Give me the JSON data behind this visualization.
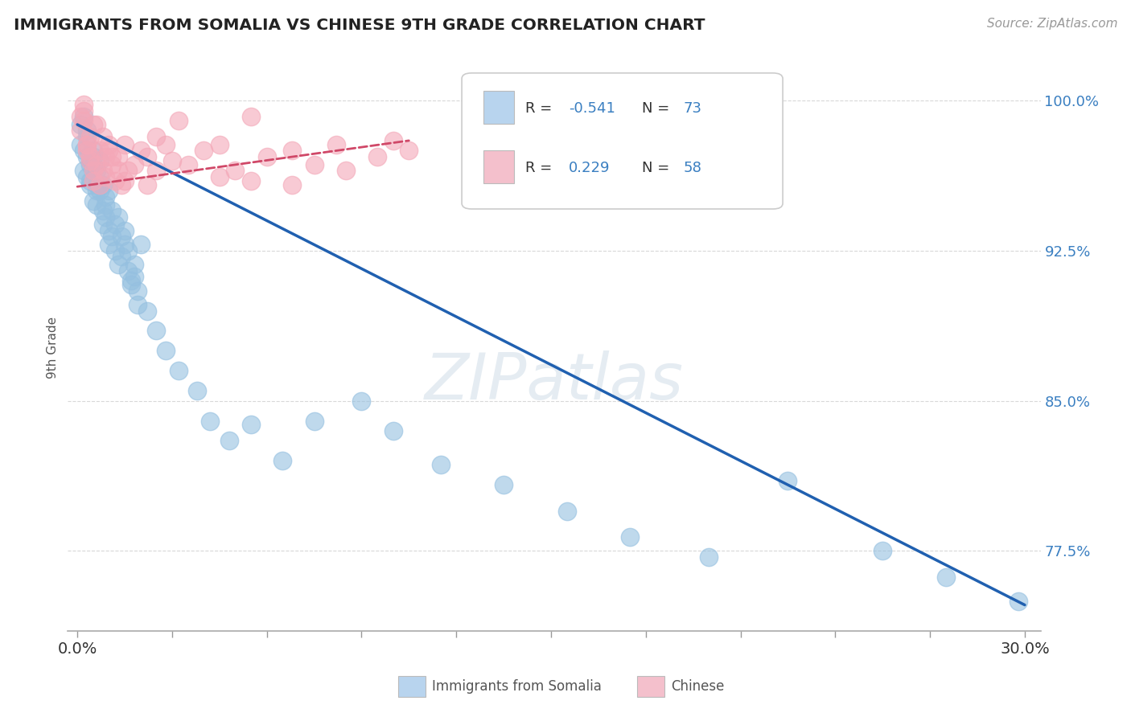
{
  "title": "IMMIGRANTS FROM SOMALIA VS CHINESE 9TH GRADE CORRELATION CHART",
  "source": "Source: ZipAtlas.com",
  "ylabel": "9th Grade",
  "ymin": 0.735,
  "ymax": 1.018,
  "xmin": -0.003,
  "xmax": 0.305,
  "r_somalia": -0.541,
  "n_somalia": 73,
  "r_chinese": 0.229,
  "n_chinese": 58,
  "blue_color": "#95c0e0",
  "pink_color": "#f4a8b8",
  "trend_blue": "#2060b0",
  "trend_pink": "#d04868",
  "legend_box_blue": "#b8d4ee",
  "legend_box_pink": "#f4c0cc",
  "watermark_color": "#c8d8e8",
  "grid_color": "#d8d8d8",
  "background_color": "#ffffff",
  "right_label_color": "#3a7fc1",
  "axis_label_color": "#555555",
  "somalia_trend_x0": 0.0,
  "somalia_trend_y0": 0.988,
  "somalia_trend_x1": 0.3,
  "somalia_trend_y1": 0.748,
  "chinese_trend_x0": 0.0,
  "chinese_trend_y0": 0.957,
  "chinese_trend_x1": 0.105,
  "chinese_trend_y1": 0.98,
  "somalia_x": [
    0.001,
    0.002,
    0.001,
    0.003,
    0.002,
    0.003,
    0.004,
    0.002,
    0.003,
    0.004,
    0.005,
    0.003,
    0.004,
    0.005,
    0.006,
    0.004,
    0.005,
    0.006,
    0.005,
    0.006,
    0.007,
    0.006,
    0.007,
    0.008,
    0.007,
    0.008,
    0.009,
    0.008,
    0.009,
    0.01,
    0.009,
    0.01,
    0.011,
    0.01,
    0.012,
    0.011,
    0.013,
    0.012,
    0.014,
    0.013,
    0.015,
    0.014,
    0.016,
    0.015,
    0.017,
    0.016,
    0.018,
    0.017,
    0.019,
    0.018,
    0.02,
    0.019,
    0.022,
    0.025,
    0.028,
    0.032,
    0.038,
    0.042,
    0.048,
    0.055,
    0.065,
    0.075,
    0.09,
    0.1,
    0.115,
    0.135,
    0.155,
    0.175,
    0.2,
    0.225,
    0.255,
    0.275,
    0.298
  ],
  "somalia_y": [
    0.988,
    0.992,
    0.978,
    0.982,
    0.975,
    0.985,
    0.97,
    0.965,
    0.972,
    0.968,
    0.975,
    0.962,
    0.958,
    0.965,
    0.955,
    0.96,
    0.95,
    0.958,
    0.972,
    0.965,
    0.955,
    0.948,
    0.962,
    0.958,
    0.97,
    0.945,
    0.952,
    0.938,
    0.948,
    0.955,
    0.942,
    0.935,
    0.945,
    0.928,
    0.938,
    0.932,
    0.942,
    0.925,
    0.932,
    0.918,
    0.928,
    0.922,
    0.915,
    0.935,
    0.91,
    0.925,
    0.918,
    0.908,
    0.905,
    0.912,
    0.928,
    0.898,
    0.895,
    0.885,
    0.875,
    0.865,
    0.855,
    0.84,
    0.83,
    0.838,
    0.82,
    0.84,
    0.85,
    0.835,
    0.818,
    0.808,
    0.795,
    0.782,
    0.772,
    0.81,
    0.775,
    0.762,
    0.75
  ],
  "chinese_x": [
    0.001,
    0.002,
    0.001,
    0.003,
    0.002,
    0.004,
    0.003,
    0.005,
    0.002,
    0.004,
    0.003,
    0.005,
    0.004,
    0.006,
    0.005,
    0.007,
    0.006,
    0.008,
    0.007,
    0.009,
    0.008,
    0.01,
    0.009,
    0.011,
    0.01,
    0.012,
    0.011,
    0.013,
    0.014,
    0.015,
    0.013,
    0.016,
    0.018,
    0.02,
    0.015,
    0.022,
    0.025,
    0.028,
    0.022,
    0.03,
    0.025,
    0.035,
    0.04,
    0.045,
    0.032,
    0.05,
    0.045,
    0.06,
    0.055,
    0.068,
    0.055,
    0.075,
    0.085,
    0.068,
    0.095,
    0.082,
    0.1,
    0.105
  ],
  "chinese_y": [
    0.992,
    0.998,
    0.985,
    0.978,
    0.99,
    0.982,
    0.975,
    0.988,
    0.995,
    0.97,
    0.978,
    0.965,
    0.972,
    0.988,
    0.96,
    0.975,
    0.968,
    0.982,
    0.958,
    0.972,
    0.965,
    0.978,
    0.962,
    0.968,
    0.975,
    0.96,
    0.972,
    0.965,
    0.958,
    0.978,
    0.972,
    0.965,
    0.968,
    0.975,
    0.96,
    0.972,
    0.965,
    0.978,
    0.958,
    0.97,
    0.982,
    0.968,
    0.975,
    0.962,
    0.99,
    0.965,
    0.978,
    0.972,
    0.96,
    0.975,
    0.992,
    0.968,
    0.965,
    0.958,
    0.972,
    0.978,
    0.98,
    0.975
  ]
}
